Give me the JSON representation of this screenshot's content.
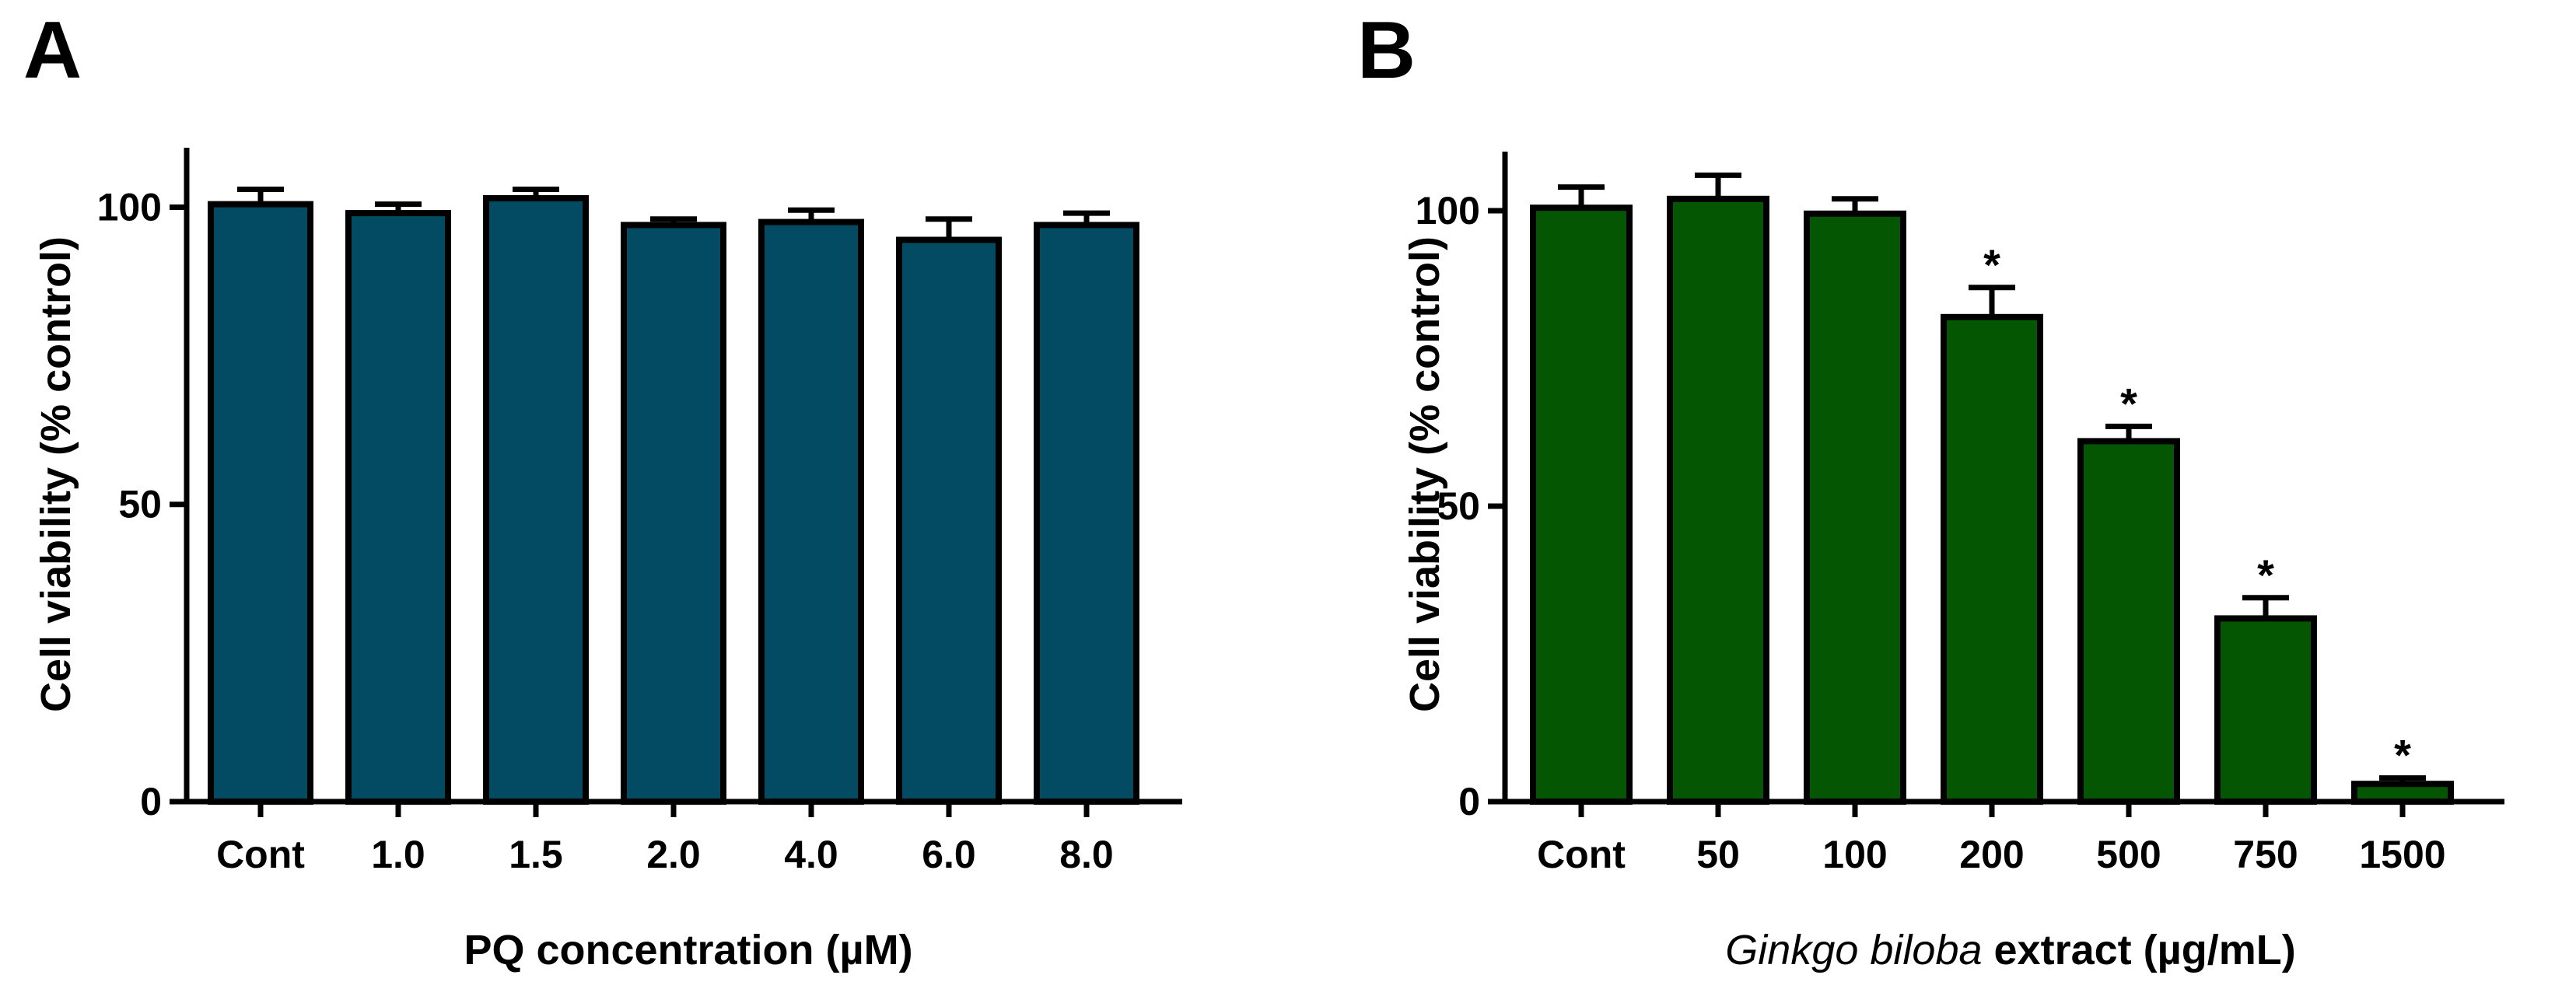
{
  "chart_data": [
    {
      "type": "bar",
      "panel_label": "A",
      "ylabel": "Cell viability (%  control)",
      "xlabel_prefix": "",
      "xlabel_italic": "",
      "xlabel_suffix": "PQ concentration (µM)",
      "categories": [
        "Cont",
        "1.0",
        "1.5",
        "2.0",
        "4.0",
        "6.0",
        "8.0"
      ],
      "values": [
        100.5,
        99,
        101.5,
        97,
        97.5,
        94.5,
        97
      ],
      "errors": [
        2.5,
        1.5,
        1.5,
        1.0,
        2.0,
        3.5,
        2.0
      ],
      "significance": [
        "",
        "",
        "",
        "",
        "",
        "",
        ""
      ],
      "ylim": [
        0,
        110
      ],
      "yticks": [
        0,
        50,
        100
      ],
      "bar_color": "#034a63"
    },
    {
      "type": "bar",
      "panel_label": "B",
      "ylabel": "Cell viability (% control)",
      "xlabel_prefix": "",
      "xlabel_italic": "Ginkgo biloba",
      "xlabel_suffix": " extract (µg/mL)",
      "categories": [
        "Cont",
        "50",
        "100",
        "200",
        "500",
        "750",
        "1500"
      ],
      "values": [
        100.5,
        102,
        99.5,
        82,
        61,
        31,
        3
      ],
      "errors": [
        3.5,
        4.0,
        2.5,
        5.0,
        2.5,
        3.5,
        1.0
      ],
      "significance": [
        "",
        "",
        "",
        "*",
        "*",
        "*",
        "*"
      ],
      "ylim": [
        0,
        110
      ],
      "yticks": [
        0,
        50,
        100
      ],
      "bar_color": "#055603"
    }
  ]
}
